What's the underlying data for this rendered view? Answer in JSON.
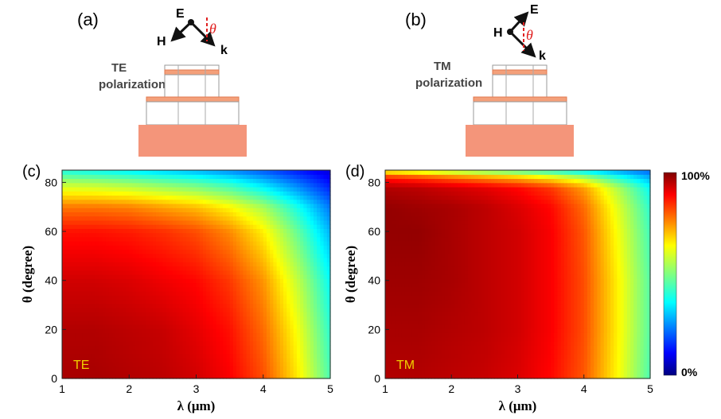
{
  "panels": {
    "a": {
      "label": "(a)",
      "E": "E",
      "H": "H",
      "k": "k",
      "theta": "θ",
      "pol_line1": "TE",
      "pol_line2": "polarization"
    },
    "b": {
      "label": "(b)",
      "E": "E",
      "H": "H",
      "k": "k",
      "theta": "θ",
      "pol_line1": "TM",
      "pol_line2": "polarization"
    }
  },
  "colorbar": {
    "max_label": "100%",
    "min_label": "0%",
    "colormap": "jet"
  },
  "colors": {
    "structure_fill": "#f4a07a",
    "structure_edge": "#e07a50",
    "field_arrow": "#111111",
    "angle_mark": "#e02020",
    "mode_label": "#f0d000"
  },
  "chart_data": [
    {
      "type": "heatmap",
      "panel_label": "(c)",
      "mode_label": "TE",
      "xlabel": "λ (μm)",
      "ylabel": "θ (degree)",
      "xlim": [
        1,
        5
      ],
      "ylim": [
        0,
        85
      ],
      "xticks": [
        1,
        2,
        3,
        4,
        5
      ],
      "yticks": [
        0,
        20,
        40,
        60,
        80
      ],
      "value_range": [
        0,
        100
      ],
      "unit": "%",
      "x": [
        1,
        1.5,
        2,
        2.5,
        3,
        3.5,
        4,
        4.5,
        5
      ],
      "y": [
        0,
        20,
        40,
        60,
        70,
        80,
        85
      ],
      "z": [
        [
          96,
          96,
          95,
          94,
          92,
          88,
          80,
          65,
          45
        ],
        [
          95,
          95,
          94,
          93,
          90,
          86,
          77,
          62,
          42
        ],
        [
          92,
          92,
          91,
          89,
          87,
          82,
          73,
          57,
          38
        ],
        [
          86,
          86,
          85,
          83,
          80,
          74,
          64,
          48,
          30
        ],
        [
          76,
          76,
          75,
          72,
          69,
          63,
          54,
          40,
          24
        ],
        [
          55,
          54,
          52,
          49,
          46,
          41,
          33,
          24,
          14
        ],
        [
          40,
          38,
          36,
          33,
          30,
          26,
          21,
          15,
          9
        ]
      ]
    },
    {
      "type": "heatmap",
      "panel_label": "(d)",
      "mode_label": "TM",
      "xlabel": "λ (μm)",
      "ylabel": "θ (degree)",
      "xlim": [
        1,
        5
      ],
      "ylim": [
        0,
        85
      ],
      "xticks": [
        1,
        2,
        3,
        4,
        5
      ],
      "yticks": [
        0,
        20,
        40,
        60,
        80
      ],
      "value_range": [
        0,
        100
      ],
      "unit": "%",
      "x": [
        1,
        1.5,
        2,
        2.5,
        3,
        3.5,
        4,
        4.5,
        5
      ],
      "y": [
        0,
        20,
        40,
        60,
        70,
        78,
        82,
        85
      ],
      "z": [
        [
          95,
          95,
          94,
          93,
          91,
          87,
          79,
          63,
          45
        ],
        [
          96,
          96,
          95,
          94,
          92,
          88,
          80,
          64,
          46
        ],
        [
          97,
          97,
          96,
          94,
          92,
          88,
          80,
          64,
          46
        ],
        [
          98,
          98,
          96,
          94,
          92,
          88,
          79,
          62,
          44
        ],
        [
          98,
          97,
          96,
          94,
          91,
          87,
          77,
          60,
          42
        ],
        [
          95,
          94,
          92,
          90,
          87,
          82,
          72,
          55,
          38
        ],
        [
          85,
          82,
          78,
          74,
          70,
          64,
          55,
          42,
          30
        ],
        [
          60,
          56,
          52,
          48,
          44,
          40,
          35,
          28,
          22
        ]
      ]
    }
  ]
}
